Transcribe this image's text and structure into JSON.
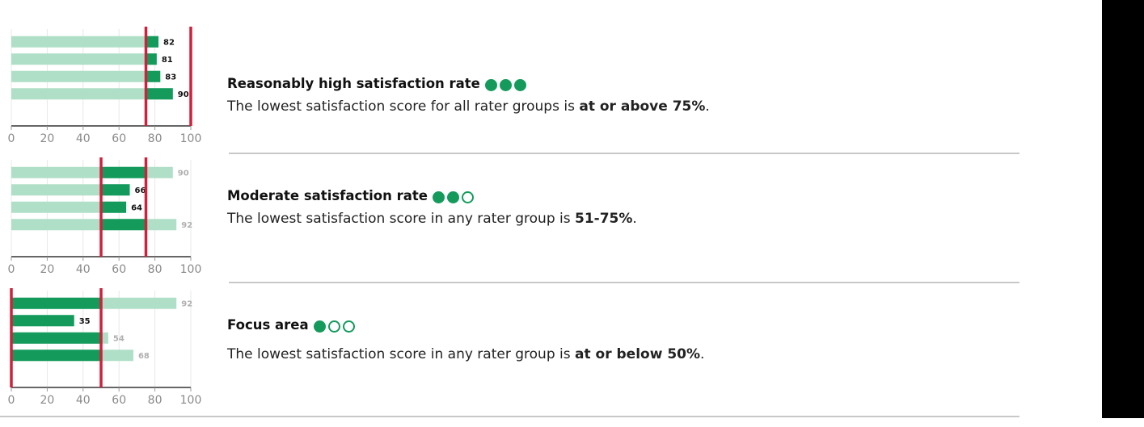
{
  "colors": {
    "bar_full": "#149b5c",
    "bar_light": "#b0dfc8",
    "threshold": "#d0213c",
    "label_dark": "#111111",
    "label_light": "#b0b0b0"
  },
  "chart_data": [
    {
      "type": "bar",
      "orientation": "horizontal",
      "xlim": [
        0,
        100
      ],
      "xticks": [
        "0",
        "20",
        "40",
        "60",
        "80",
        "100"
      ],
      "highlight_range": [
        75,
        100
      ],
      "threshold_lines": [
        75,
        100
      ],
      "values": [
        82,
        81,
        83,
        90
      ],
      "value_labels": [
        "82",
        "81",
        "83",
        "90"
      ]
    },
    {
      "type": "bar",
      "orientation": "horizontal",
      "xlim": [
        0,
        100
      ],
      "xticks": [
        "0",
        "20",
        "40",
        "60",
        "80",
        "100"
      ],
      "highlight_range": [
        50,
        75
      ],
      "threshold_lines": [
        50,
        75
      ],
      "values": [
        90,
        66,
        64,
        92
      ],
      "value_labels": [
        "90",
        "66",
        "64",
        "92"
      ]
    },
    {
      "type": "bar",
      "orientation": "horizontal",
      "xlim": [
        0,
        100
      ],
      "xticks": [
        "0",
        "20",
        "40",
        "60",
        "80",
        "100"
      ],
      "highlight_range": [
        0,
        50
      ],
      "threshold_lines": [
        0,
        50
      ],
      "values": [
        92,
        35,
        54,
        68
      ],
      "value_labels": [
        "92",
        "35",
        "54",
        "68"
      ]
    }
  ],
  "items": [
    {
      "title": "Reasonably high satisfaction rate",
      "dots": [
        "full",
        "full",
        "full"
      ],
      "desc_prefix": "The lowest satisfaction score for all rater groups is ",
      "desc_bold": "at or above 75%",
      "desc_suffix": "."
    },
    {
      "title": "Moderate satisfaction rate",
      "dots": [
        "full",
        "full",
        "empty"
      ],
      "desc_prefix": "The lowest satisfaction score in any rater group is ",
      "desc_bold": "51-75%",
      "desc_suffix": "."
    },
    {
      "title": "Focus area",
      "dots": [
        "full",
        "empty",
        "empty"
      ],
      "desc_prefix": "The lowest satisfaction score in any rater group is ",
      "desc_bold": "at or below 50%",
      "desc_suffix": "."
    }
  ]
}
